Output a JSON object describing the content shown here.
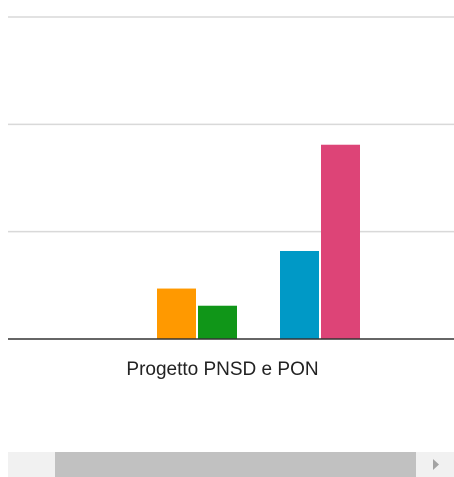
{
  "chart_data": {
    "type": "bar",
    "categories": [
      "Progetto PNSD e PON"
    ],
    "series": [
      {
        "color": "#3366cc",
        "values": [
          0
        ]
      },
      {
        "color": "#dc3912",
        "values": [
          0
        ]
      },
      {
        "color": "#ff9900",
        "values": [
          0.47
        ]
      },
      {
        "color": "#109618",
        "values": [
          0.31
        ]
      },
      {
        "color": "#990099",
        "values": [
          0
        ]
      },
      {
        "color": "#0099c6",
        "values": [
          0.82
        ]
      },
      {
        "color": "#dd4477",
        "values": [
          1.81
        ]
      }
    ],
    "ylim": [
      0,
      3
    ],
    "yticks": [
      0,
      1,
      2,
      3
    ],
    "grid": true
  }
}
